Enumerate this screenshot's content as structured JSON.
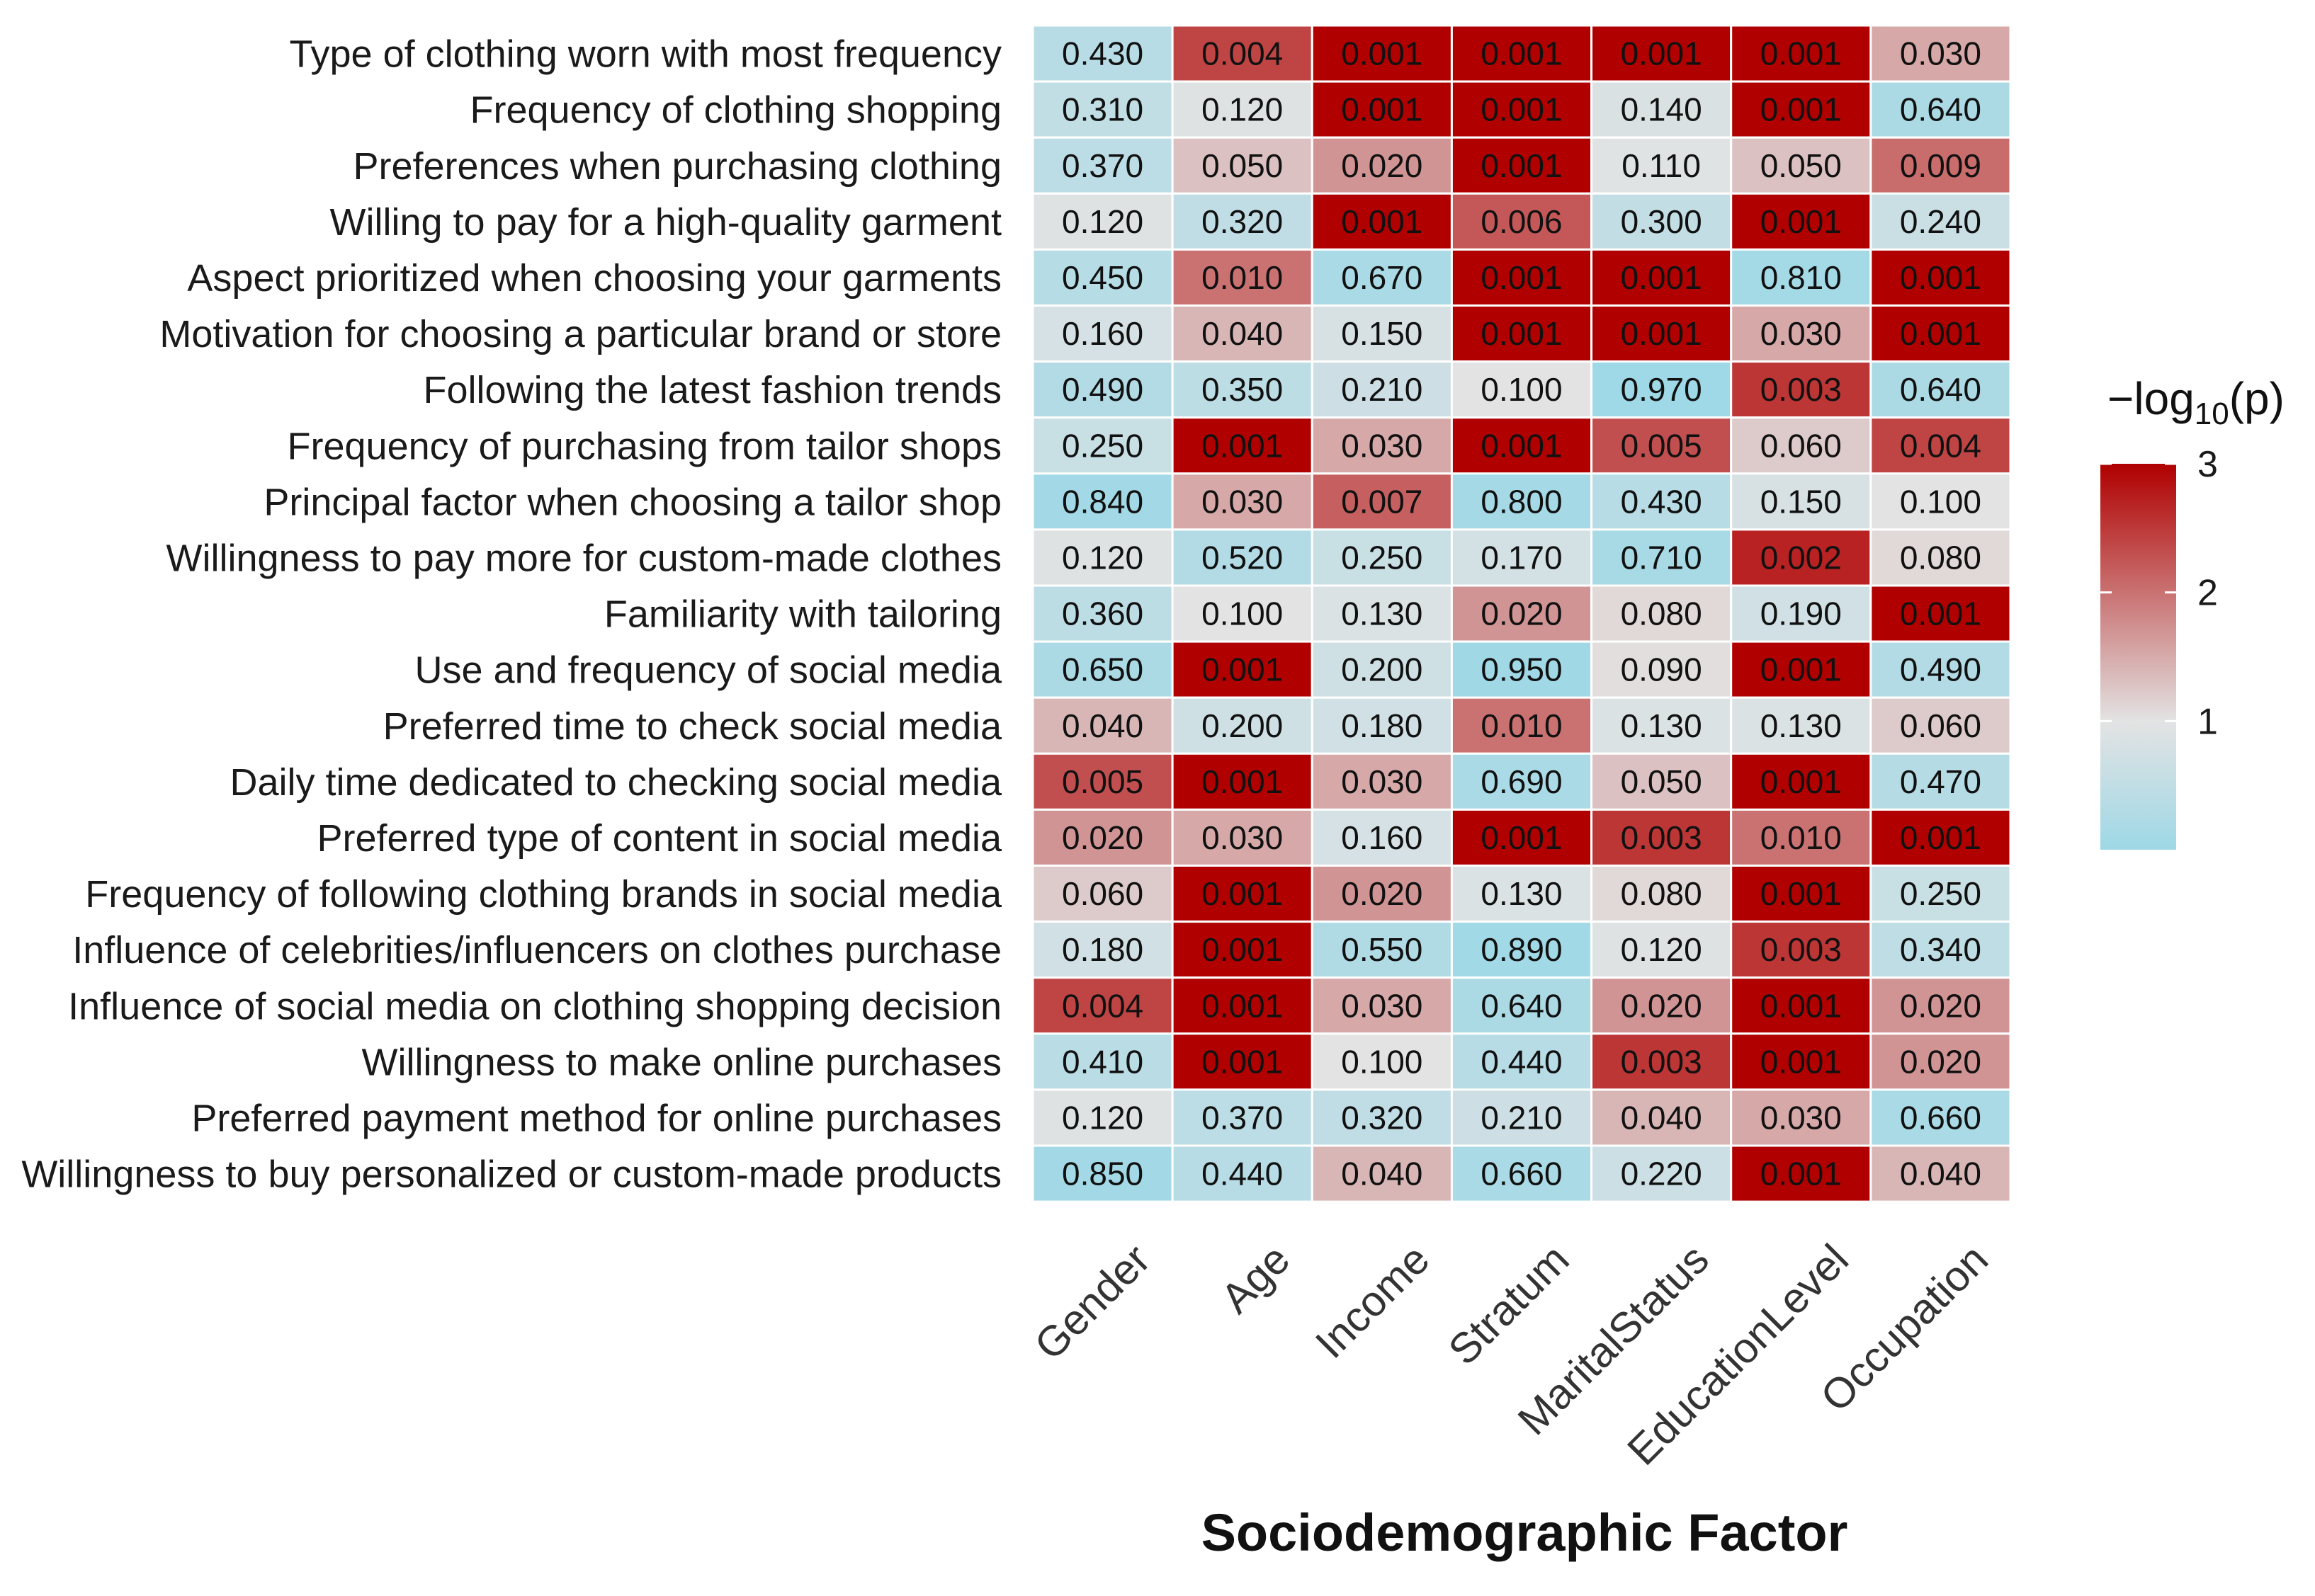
{
  "chart_data": {
    "type": "heatmap",
    "title": "",
    "xlabel": "Sociodemographic Factor",
    "ylabel": "",
    "columns": [
      "Gender",
      "Age",
      "Income",
      "Stratum",
      "MaritalStatus",
      "EducationLevel",
      "Occupation"
    ],
    "rows": [
      "Type of clothing worn with most frequency",
      "Frequency of clothing shopping",
      "Preferences when purchasing clothing",
      "Willing to pay for a high-quality garment",
      "Aspect prioritized when choosing your garments",
      "Motivation for choosing a particular brand or store",
      "Following the latest fashion trends",
      "Frequency of purchasing from tailor shops",
      "Principal factor when choosing a tailor shop",
      "Willingness to pay more for custom-made clothes",
      "Familiarity with tailoring",
      "Use and frequency of social media",
      "Preferred time to check social media",
      "Daily time dedicated to checking social media",
      "Preferred type of content in social media",
      "Frequency of following clothing brands in social media",
      "Influence of celebrities/influencers on clothes purchase",
      "Influence of social media on clothing shopping decision",
      "Willingness to make online purchases",
      "Preferred payment method for online purchases",
      "Willingness to buy personalized or custom-made products"
    ],
    "values": [
      [
        0.43,
        0.004,
        0.001,
        0.001,
        0.001,
        0.001,
        0.03
      ],
      [
        0.31,
        0.12,
        0.001,
        0.001,
        0.14,
        0.001,
        0.64
      ],
      [
        0.37,
        0.05,
        0.02,
        0.001,
        0.11,
        0.05,
        0.009
      ],
      [
        0.12,
        0.32,
        0.001,
        0.006,
        0.3,
        0.001,
        0.24
      ],
      [
        0.45,
        0.01,
        0.67,
        0.001,
        0.001,
        0.81,
        0.001
      ],
      [
        0.16,
        0.04,
        0.15,
        0.001,
        0.001,
        0.03,
        0.001
      ],
      [
        0.49,
        0.35,
        0.21,
        0.1,
        0.97,
        0.003,
        0.64
      ],
      [
        0.25,
        0.001,
        0.03,
        0.001,
        0.005,
        0.06,
        0.004
      ],
      [
        0.84,
        0.03,
        0.007,
        0.8,
        0.43,
        0.15,
        0.1
      ],
      [
        0.12,
        0.52,
        0.25,
        0.17,
        0.71,
        0.002,
        0.08
      ],
      [
        0.36,
        0.1,
        0.13,
        0.02,
        0.08,
        0.19,
        0.001
      ],
      [
        0.65,
        0.001,
        0.2,
        0.95,
        0.09,
        0.001,
        0.49
      ],
      [
        0.04,
        0.2,
        0.18,
        0.01,
        0.13,
        0.13,
        0.06
      ],
      [
        0.005,
        0.001,
        0.03,
        0.69,
        0.05,
        0.001,
        0.47
      ],
      [
        0.02,
        0.03,
        0.16,
        0.001,
        0.003,
        0.01,
        0.001
      ],
      [
        0.06,
        0.001,
        0.02,
        0.13,
        0.08,
        0.001,
        0.25
      ],
      [
        0.18,
        0.001,
        0.55,
        0.89,
        0.12,
        0.003,
        0.34
      ],
      [
        0.004,
        0.001,
        0.03,
        0.64,
        0.02,
        0.001,
        0.02
      ],
      [
        0.41,
        0.001,
        0.1,
        0.44,
        0.003,
        0.001,
        0.02
      ],
      [
        0.12,
        0.37,
        0.32,
        0.21,
        0.04,
        0.03,
        0.66
      ],
      [
        0.85,
        0.44,
        0.04,
        0.66,
        0.22,
        0.001,
        0.04
      ]
    ],
    "color_scale": {
      "title": "−log10(p)",
      "min": 0,
      "max": 3,
      "ticks": [
        1,
        2,
        3
      ],
      "low_color": "#9ed8e6",
      "mid_color": "#e3e3e3",
      "high_color": "#b00000"
    },
    "grid": false,
    "legend_position": "right"
  }
}
